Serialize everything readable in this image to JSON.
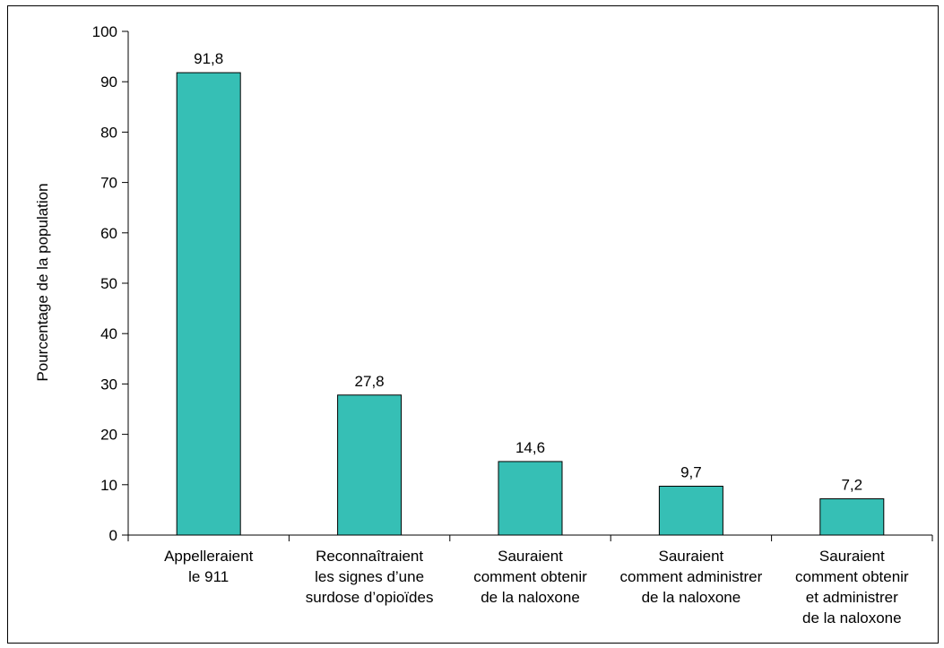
{
  "chart_data": {
    "type": "bar",
    "title": "",
    "xlabel": "",
    "ylabel": "Pourcentage de la population",
    "ylim": [
      0,
      100
    ],
    "yticks": [
      0,
      10,
      20,
      30,
      40,
      50,
      60,
      70,
      80,
      90,
      100
    ],
    "grid": false,
    "legend": "none",
    "bar_color": "#36bfb5",
    "categories": [
      [
        "Appelleraient",
        "le 911"
      ],
      [
        "Reconnaîtraient",
        "les signes d’une",
        "surdose d’opioïdes"
      ],
      [
        "Sauraient",
        "comment obtenir",
        "de la naloxone"
      ],
      [
        "Sauraient",
        "comment administrer",
        "de la naloxone"
      ],
      [
        "Sauraient",
        "comment obtenir",
        "et administrer",
        "de la naloxone"
      ]
    ],
    "values": [
      91.8,
      27.8,
      14.6,
      9.7,
      7.2
    ],
    "value_labels": [
      "91,8",
      "27,8",
      "14,6",
      "9,7",
      "7,2"
    ]
  }
}
